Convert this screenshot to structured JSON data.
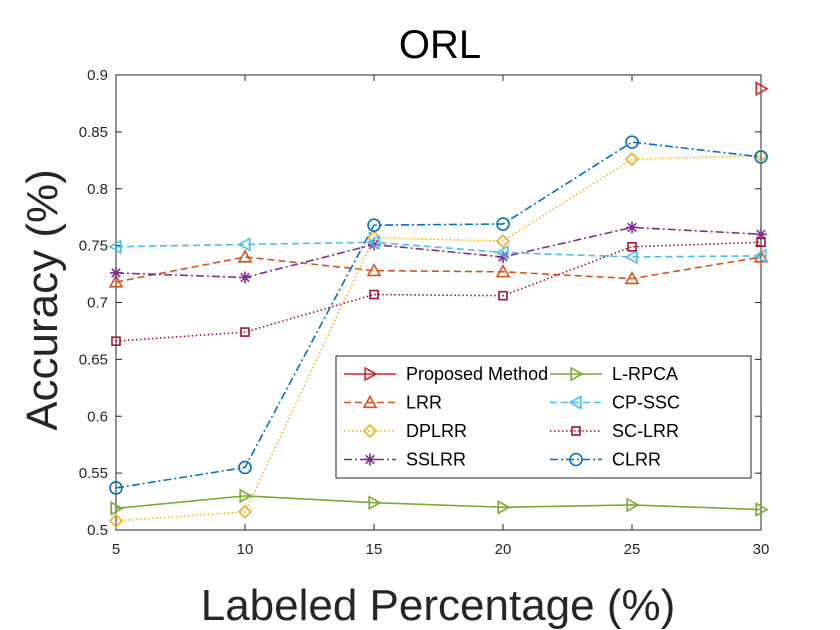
{
  "chart_data": {
    "type": "line",
    "title": "ORL",
    "xlabel": "Labeled Percentage (%)",
    "ylabel": "Accuracy (%)",
    "x": [
      5,
      10,
      15,
      20,
      25,
      30
    ],
    "xlim": [
      5,
      30
    ],
    "ylim": [
      0.5,
      0.9
    ],
    "xticks": [
      "5",
      "10",
      "15",
      "20",
      "25",
      "30"
    ],
    "yticks": [
      "0.5",
      "0.55",
      "0.6",
      "0.65",
      "0.7",
      "0.75",
      "0.8",
      "0.85",
      "0.9"
    ],
    "grid": false,
    "legend_position": "lower-right",
    "legend_columns": 2,
    "series": [
      {
        "name": "Proposed Method",
        "color": "#d62728",
        "dash": "solid",
        "marker": "triangle-right",
        "x": [
          30
        ],
        "values": [
          0.888
        ]
      },
      {
        "name": "LRR",
        "color": "#d95319",
        "dash": "dashed",
        "marker": "triangle-up",
        "values": [
          0.718,
          0.74,
          0.728,
          0.727,
          0.721,
          0.74
        ]
      },
      {
        "name": "DPLRR",
        "color": "#edb120",
        "dash": "dotted",
        "marker": "diamond",
        "values": [
          0.508,
          0.516,
          0.757,
          0.754,
          0.826,
          0.829
        ]
      },
      {
        "name": "SSLRR",
        "color": "#7e2f8e",
        "dash": "dashdot",
        "marker": "star",
        "values": [
          0.726,
          0.722,
          0.751,
          0.74,
          0.766,
          0.76
        ]
      },
      {
        "name": "L-RPCA",
        "color": "#77ac30",
        "dash": "solid",
        "marker": "triangle-right",
        "values": [
          0.519,
          0.53,
          0.524,
          0.52,
          0.522,
          0.518
        ]
      },
      {
        "name": "CP-SSC",
        "color": "#4dbeee",
        "dash": "dashed",
        "marker": "triangle-left",
        "values": [
          0.749,
          0.751,
          0.753,
          0.744,
          0.74,
          0.741
        ]
      },
      {
        "name": "SC-LRR",
        "color": "#a2142f",
        "dash": "dotted",
        "marker": "square",
        "values": [
          0.666,
          0.674,
          0.707,
          0.706,
          0.749,
          0.753
        ]
      },
      {
        "name": "CLRR",
        "color": "#0072bd",
        "dash": "dashdot",
        "marker": "circle",
        "values": [
          0.537,
          0.555,
          0.768,
          0.769,
          0.841,
          0.828
        ]
      }
    ]
  }
}
